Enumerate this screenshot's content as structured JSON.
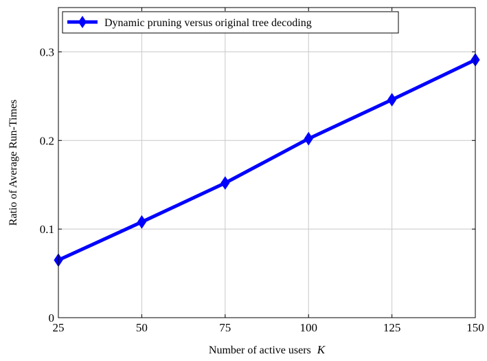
{
  "chart_data": {
    "type": "line",
    "title": "",
    "xlabel": "Number of active users",
    "xlabel_var": "K",
    "ylabel": "Ratio of Average Run-Times",
    "x": [
      25,
      50,
      75,
      100,
      125,
      150
    ],
    "xlim": [
      25,
      150
    ],
    "ylim": [
      0,
      0.35
    ],
    "x_ticks": [
      25,
      50,
      75,
      100,
      125,
      150
    ],
    "x_tick_labels": [
      "25",
      "50",
      "75",
      "100",
      "125",
      "150"
    ],
    "y_ticks": [
      0,
      0.1,
      0.2,
      0.3
    ],
    "y_tick_labels": [
      "0",
      "0.1",
      "0.2",
      "0.3"
    ],
    "grid": true,
    "legend_position": "top-left",
    "series": [
      {
        "name": "Dynamic pruning versus original tree decoding",
        "values": [
          0.065,
          0.108,
          0.152,
          0.202,
          0.246,
          0.291
        ],
        "color": "#0000ff",
        "marker": "diamond"
      }
    ]
  }
}
